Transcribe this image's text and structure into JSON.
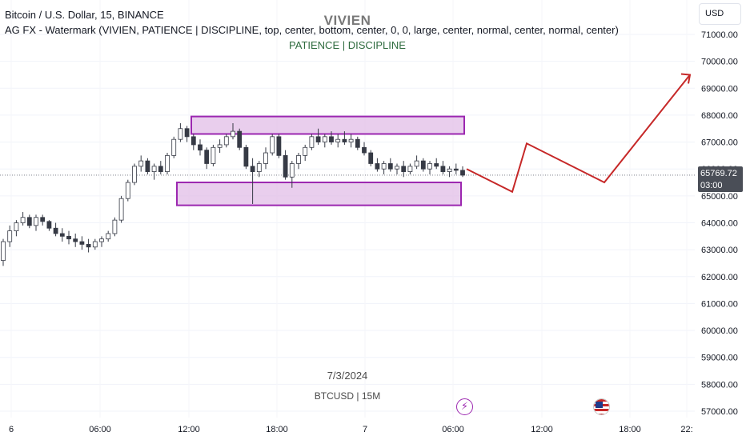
{
  "legend": {
    "symbol_line": "Bitcoin / U.S. Dollar, 15, BINANCE",
    "indicator_line": "AG FX - Watermark (VIVIEN, PATIENCE  |  DISCIPLINE, top, center, bottom, center, 0, 0, large, center, normal, center, normal, center)"
  },
  "watermark": {
    "title": "VIVIEN",
    "subtitle": "PATIENCE  |  DISCIPLINE",
    "date": "7/3/2024",
    "symbol": "BTCUSD | 15M"
  },
  "price_scale": {
    "currency": "USD",
    "last_price": "65769.72",
    "countdown": "03:00",
    "ticks": [
      "71000.00",
      "70000.00",
      "69000.00",
      "68000.00",
      "67000.00",
      "66000.00",
      "65000.00",
      "64000.00",
      "63000.00",
      "62000.00",
      "61000.00",
      "60000.00",
      "59000.00",
      "58000.00",
      "57000.00"
    ]
  },
  "time_scale": {
    "labels": [
      "6",
      "06:00",
      "12:00",
      "18:00",
      "7",
      "06:00",
      "12:00",
      "18:00",
      "22:"
    ]
  },
  "events": {
    "bolt_icon": "lightning-event-icon",
    "flag_icon": "us-flag-event-icon"
  },
  "colors": {
    "up_candle": "#ffffff",
    "down_candle": "#363a45",
    "zone_fill": "#e1bee7",
    "zone_border": "#9c27b0",
    "projection": "#c62828",
    "watermark_sub": "#2e6b3e"
  },
  "chart_data": {
    "type": "candlestick",
    "symbol": "BTCUSD",
    "interval": "15",
    "ylim": [
      56900,
      71500
    ],
    "zones": [
      {
        "from": 67300,
        "to": 67950
      },
      {
        "from": 64650,
        "to": 65500
      }
    ],
    "projection": [
      66000,
      65150,
      66950,
      65500,
      69500
    ],
    "candles": [
      [
        62600,
        63400,
        62400,
        63300
      ],
      [
        63300,
        63900,
        63100,
        63700
      ],
      [
        63700,
        64100,
        63500,
        64000
      ],
      [
        64000,
        64400,
        63900,
        64200
      ],
      [
        64200,
        64300,
        63800,
        63900
      ],
      [
        63900,
        64300,
        63700,
        64200
      ],
      [
        64200,
        64300,
        63900,
        64050
      ],
      [
        64050,
        64100,
        63700,
        63800
      ],
      [
        63800,
        64000,
        63500,
        63600
      ],
      [
        63600,
        63800,
        63300,
        63500
      ],
      [
        63500,
        63700,
        63200,
        63400
      ],
      [
        63400,
        63600,
        63100,
        63300
      ],
      [
        63300,
        63500,
        63000,
        63200
      ],
      [
        63200,
        63400,
        62900,
        63100
      ],
      [
        63100,
        63400,
        63000,
        63300
      ],
      [
        63300,
        63500,
        63100,
        63400
      ],
      [
        63400,
        63700,
        63300,
        63600
      ],
      [
        63600,
        64200,
        63500,
        64100
      ],
      [
        64100,
        65000,
        64000,
        64900
      ],
      [
        64900,
        65600,
        64800,
        65500
      ],
      [
        65500,
        66200,
        65400,
        66100
      ],
      [
        66100,
        66500,
        65900,
        66300
      ],
      [
        66300,
        66400,
        65800,
        65900
      ],
      [
        65900,
        66200,
        65600,
        66100
      ],
      [
        66100,
        66300,
        65800,
        65900
      ],
      [
        65900,
        66600,
        65800,
        66500
      ],
      [
        66500,
        67200,
        66400,
        67100
      ],
      [
        67100,
        67700,
        67000,
        67500
      ],
      [
        67500,
        67600,
        67000,
        67200
      ],
      [
        67200,
        67300,
        66700,
        66900
      ],
      [
        66900,
        67100,
        66500,
        66700
      ],
      [
        66700,
        66800,
        66000,
        66200
      ],
      [
        66200,
        66900,
        66100,
        66800
      ],
      [
        66800,
        67100,
        66600,
        66900
      ],
      [
        66900,
        67300,
        66800,
        67200
      ],
      [
        67200,
        67700,
        67100,
        67400
      ],
      [
        67400,
        67500,
        66700,
        66800
      ],
      [
        66800,
        66900,
        66000,
        66100
      ],
      [
        66100,
        66400,
        64700,
        65900
      ],
      [
        65900,
        66300,
        65700,
        66200
      ],
      [
        66200,
        66800,
        66000,
        66600
      ],
      [
        66600,
        67300,
        66500,
        67200
      ],
      [
        67200,
        67300,
        66400,
        66500
      ],
      [
        66500,
        66700,
        65600,
        65700
      ],
      [
        65700,
        66300,
        65300,
        66200
      ],
      [
        66200,
        66600,
        66000,
        66500
      ],
      [
        66500,
        66900,
        66300,
        66800
      ],
      [
        66800,
        67300,
        66700,
        67200
      ],
      [
        67200,
        67500,
        66900,
        67000
      ],
      [
        67000,
        67300,
        66800,
        67200
      ],
      [
        67200,
        67400,
        66900,
        67000
      ],
      [
        67000,
        67300,
        66800,
        67100
      ],
      [
        67100,
        67400,
        66900,
        67000
      ],
      [
        67000,
        67300,
        66800,
        67100
      ],
      [
        67100,
        67200,
        66700,
        66800
      ],
      [
        66800,
        67000,
        66500,
        66600
      ],
      [
        66600,
        66700,
        66100,
        66200
      ],
      [
        66200,
        66400,
        65900,
        66000
      ],
      [
        66000,
        66300,
        65800,
        66200
      ],
      [
        66200,
        66400,
        65900,
        66000
      ],
      [
        66000,
        66200,
        65800,
        66100
      ],
      [
        66100,
        66300,
        65700,
        65900
      ],
      [
        65900,
        66200,
        65800,
        66100
      ],
      [
        66100,
        66500,
        66000,
        66300
      ],
      [
        66300,
        66400,
        65900,
        66000
      ],
      [
        66000,
        66300,
        65800,
        66200
      ],
      [
        66200,
        66400,
        66000,
        66100
      ],
      [
        66100,
        66300,
        65800,
        65900
      ],
      [
        65900,
        66100,
        65700,
        66000
      ],
      [
        66000,
        66200,
        65800,
        65950
      ],
      [
        65950,
        66100,
        65700,
        65769.72
      ]
    ]
  }
}
